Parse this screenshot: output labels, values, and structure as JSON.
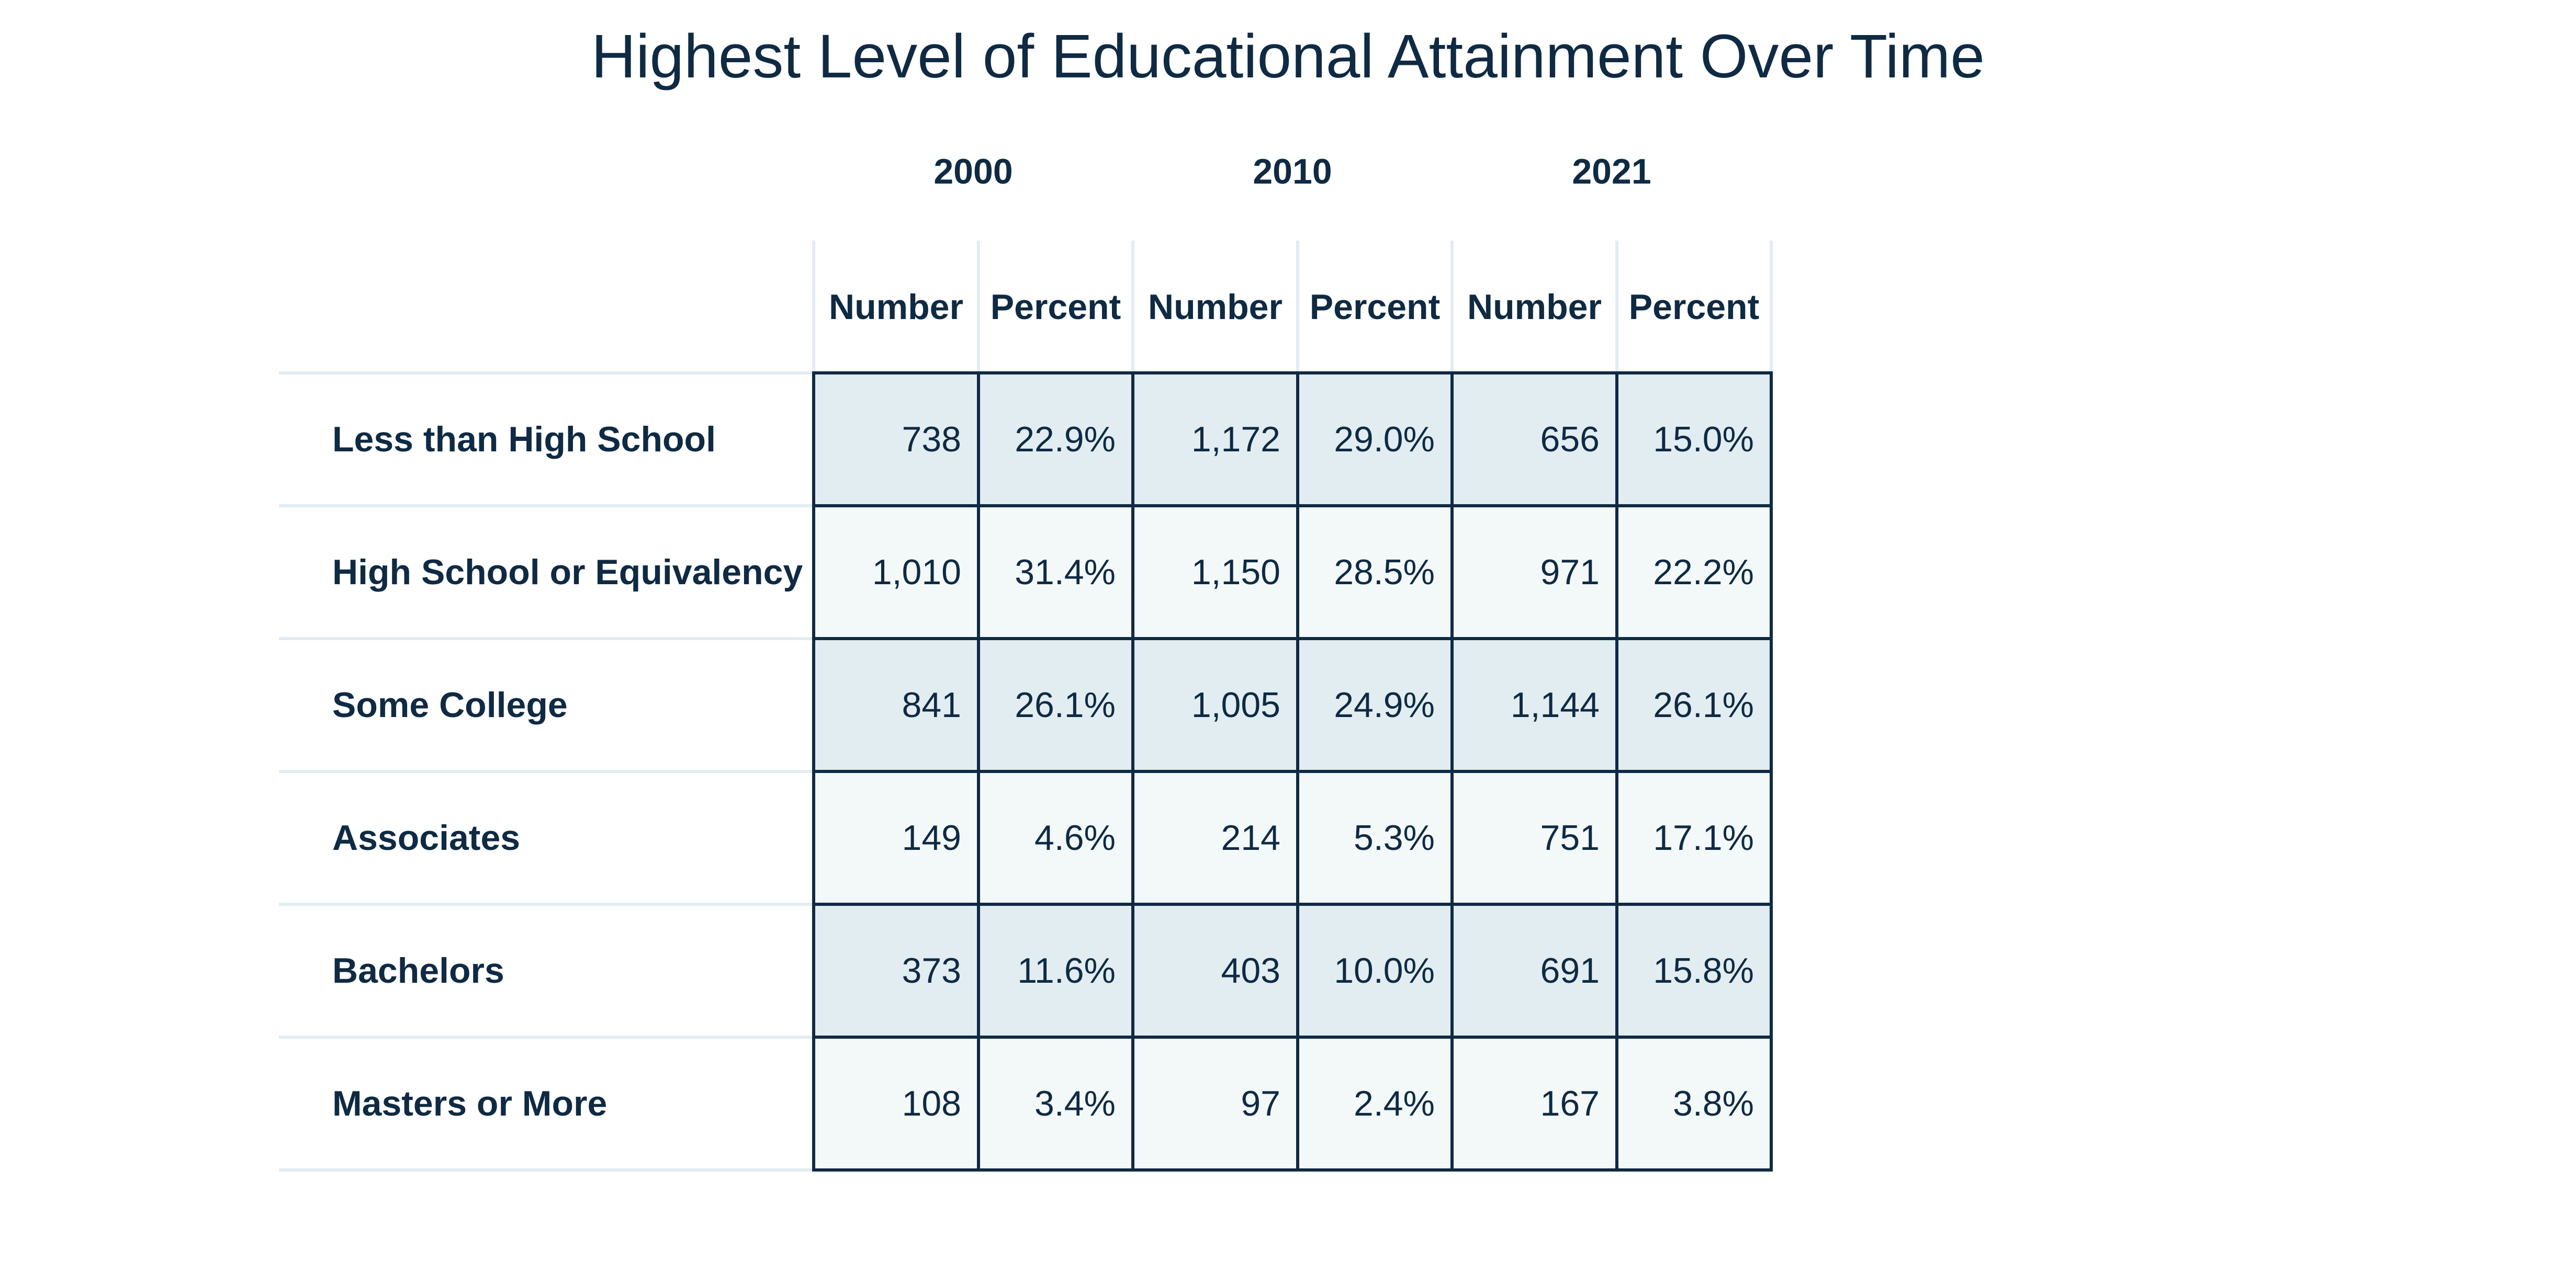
{
  "chart_data": {
    "type": "table",
    "title": "Highest Level of Educational Attainment Over Time",
    "years": [
      "2000",
      "2010",
      "2021"
    ],
    "columns": [
      "Number",
      "Percent",
      "Number",
      "Percent",
      "Number",
      "Percent"
    ],
    "rows": [
      {
        "label": "Less than High School",
        "values": [
          "738",
          "22.9%",
          "1,172",
          "29.0%",
          "656",
          "15.0%"
        ]
      },
      {
        "label": "High School or Equivalency",
        "values": [
          "1,010",
          "31.4%",
          "1,150",
          "28.5%",
          "971",
          "22.2%"
        ]
      },
      {
        "label": "Some College",
        "values": [
          "841",
          "26.1%",
          "1,005",
          "24.9%",
          "1,144",
          "26.1%"
        ]
      },
      {
        "label": "Associates",
        "values": [
          "149",
          "4.6%",
          "214",
          "5.3%",
          "751",
          "17.1%"
        ]
      },
      {
        "label": "Bachelors",
        "values": [
          "373",
          "11.6%",
          "403",
          "10.0%",
          "691",
          "15.8%"
        ]
      },
      {
        "label": "Masters or More",
        "values": [
          "108",
          "3.4%",
          "97",
          "2.4%",
          "167",
          "3.8%"
        ]
      }
    ],
    "colors": {
      "text": "#0f2a43",
      "shaded_row": "#e1edf1",
      "light_row": "#f3f8f9",
      "separator": "#e2edf1",
      "border": "#0f2a43"
    }
  }
}
